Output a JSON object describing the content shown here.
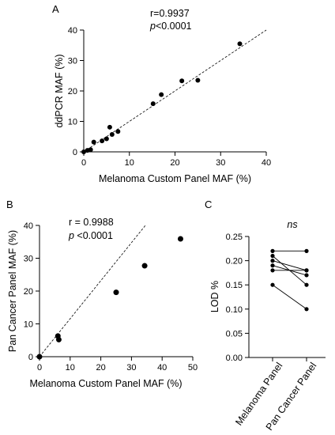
{
  "chart_data": [
    {
      "panel": "A",
      "type": "scatter",
      "xlabel": "Melanoma Custom Panel MAF (%)",
      "ylabel": "ddPCR MAF (%)",
      "xlim": [
        0,
        40
      ],
      "ylim": [
        0,
        40
      ],
      "xticks": [
        "0",
        "10",
        "20",
        "30",
        "40"
      ],
      "yticks": [
        "0",
        "10",
        "20",
        "30",
        "40"
      ],
      "stat_r": "r=0.9937",
      "stat_p_sym": "p",
      "stat_p_val": "<0.0001",
      "grid": false,
      "fit_line": "dashed",
      "points": [
        {
          "x": 0.0,
          "y": 0.0
        },
        {
          "x": 0.8,
          "y": 0.5
        },
        {
          "x": 1.5,
          "y": 0.7
        },
        {
          "x": 2.2,
          "y": 3.2
        },
        {
          "x": 4.0,
          "y": 3.6
        },
        {
          "x": 5.0,
          "y": 4.3
        },
        {
          "x": 5.7,
          "y": 8.1
        },
        {
          "x": 6.2,
          "y": 5.7
        },
        {
          "x": 7.5,
          "y": 6.7
        },
        {
          "x": 15.2,
          "y": 15.8
        },
        {
          "x": 17.0,
          "y": 18.8
        },
        {
          "x": 21.5,
          "y": 23.3
        },
        {
          "x": 25.0,
          "y": 23.5
        },
        {
          "x": 34.2,
          "y": 35.5
        }
      ]
    },
    {
      "panel": "B",
      "type": "scatter",
      "xlabel": "Melanoma Custom Panel MAF (%)",
      "ylabel": "Pan Cancer Panel MAF (%)",
      "xlim": [
        0,
        50
      ],
      "ylim": [
        0,
        40
      ],
      "xticks": [
        "0",
        "10",
        "20",
        "30",
        "40",
        "50"
      ],
      "yticks": [
        "0",
        "10",
        "20",
        "30",
        "40"
      ],
      "stat_r": "r = 0.9988",
      "stat_p_sym": "p",
      "stat_p_val": " <0.0001",
      "grid": false,
      "fit_line": "dashed",
      "points": [
        {
          "x": 0.0,
          "y": 0.0
        },
        {
          "x": 6.0,
          "y": 6.3
        },
        {
          "x": 6.3,
          "y": 5.2
        },
        {
          "x": 25.0,
          "y": 19.6
        },
        {
          "x": 34.3,
          "y": 27.7
        },
        {
          "x": 46.0,
          "y": 35.9
        }
      ]
    },
    {
      "panel": "C",
      "type": "line",
      "categories": [
        "Melanoma Panel",
        "Pan Cancer Panel"
      ],
      "ylabel": "LOD %",
      "ylim": [
        0.0,
        0.25
      ],
      "yticks": [
        "0.00",
        "0.05",
        "0.10",
        "0.15",
        "0.20",
        "0.25"
      ],
      "significance": "ns",
      "grid": false,
      "pairs": [
        [
          0.22,
          0.22
        ],
        [
          0.21,
          0.15
        ],
        [
          0.2,
          0.18
        ],
        [
          0.19,
          0.17
        ],
        [
          0.18,
          0.18
        ],
        [
          0.15,
          0.1
        ]
      ]
    }
  ]
}
